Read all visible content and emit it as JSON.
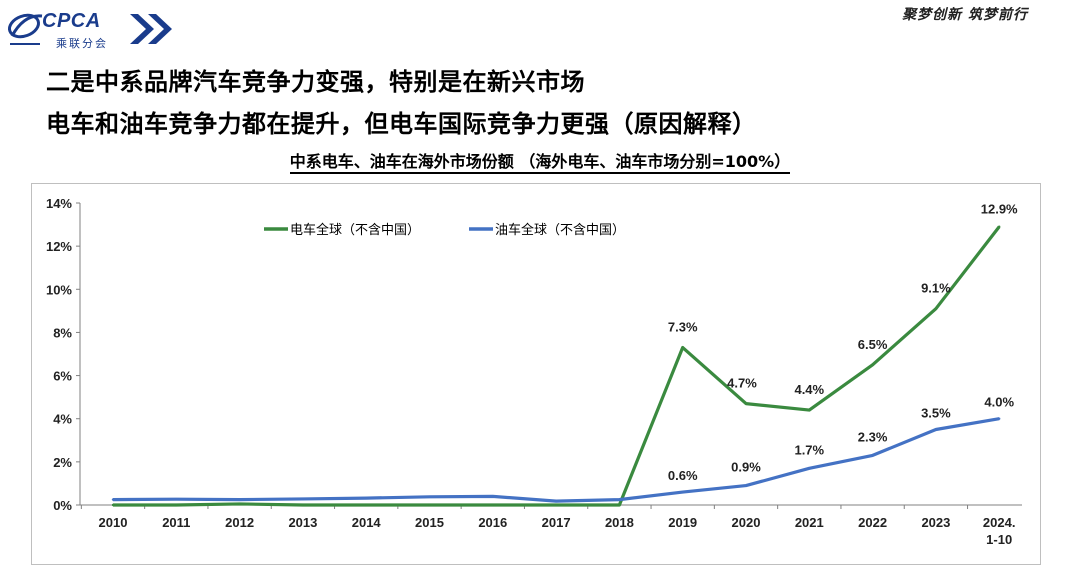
{
  "header": {
    "logo_text": "CPCA",
    "logo_sub": "乘联分会",
    "slogan": "聚梦创新 筑梦前行",
    "brand_color": "#1a3c8c"
  },
  "titles": {
    "line1": "二是中系品牌汽车竞争力变强，特别是在新兴市场",
    "line2": "电车和油车竞争力都在提升，但电车国际竞争力更强（原因解释）"
  },
  "chart_data": {
    "type": "line",
    "title": "中系电车、油车在海外市场份额 （海外电车、油车市场分别=100%）",
    "categories": [
      "2010",
      "2011",
      "2012",
      "2013",
      "2014",
      "2015",
      "2016",
      "2017",
      "2018",
      "2019",
      "2020",
      "2021",
      "2022",
      "2023",
      "2024.\n1-10"
    ],
    "ylim": [
      0,
      14
    ],
    "yticks": [
      "0%",
      "2%",
      "4%",
      "6%",
      "8%",
      "10%",
      "12%",
      "14%"
    ],
    "grid": false,
    "legend_position": "top",
    "series": [
      {
        "name": "电车全球（不含中国）",
        "color": "#3a8a3f",
        "values": [
          0.0,
          0.0,
          0.05,
          0.0,
          0.0,
          0.0,
          0.0,
          0.0,
          0.0,
          7.3,
          4.7,
          4.4,
          6.5,
          9.1,
          12.9
        ],
        "labels": [
          "",
          "",
          "",
          "",
          "",
          "",
          "",
          "",
          "",
          "7.3%",
          "4.7%",
          "4.4%",
          "6.5%",
          "9.1%",
          "12.9%"
        ]
      },
      {
        "name": "油车全球（不含中国）",
        "color": "#4472c4",
        "values": [
          0.25,
          0.27,
          0.25,
          0.28,
          0.32,
          0.38,
          0.4,
          0.18,
          0.25,
          0.6,
          0.9,
          1.7,
          2.3,
          3.5,
          4.0
        ],
        "labels": [
          "",
          "",
          "",
          "",
          "",
          "",
          "",
          "",
          "",
          "0.6%",
          "0.9%",
          "1.7%",
          "2.3%",
          "3.5%",
          "4.0%"
        ]
      }
    ]
  }
}
